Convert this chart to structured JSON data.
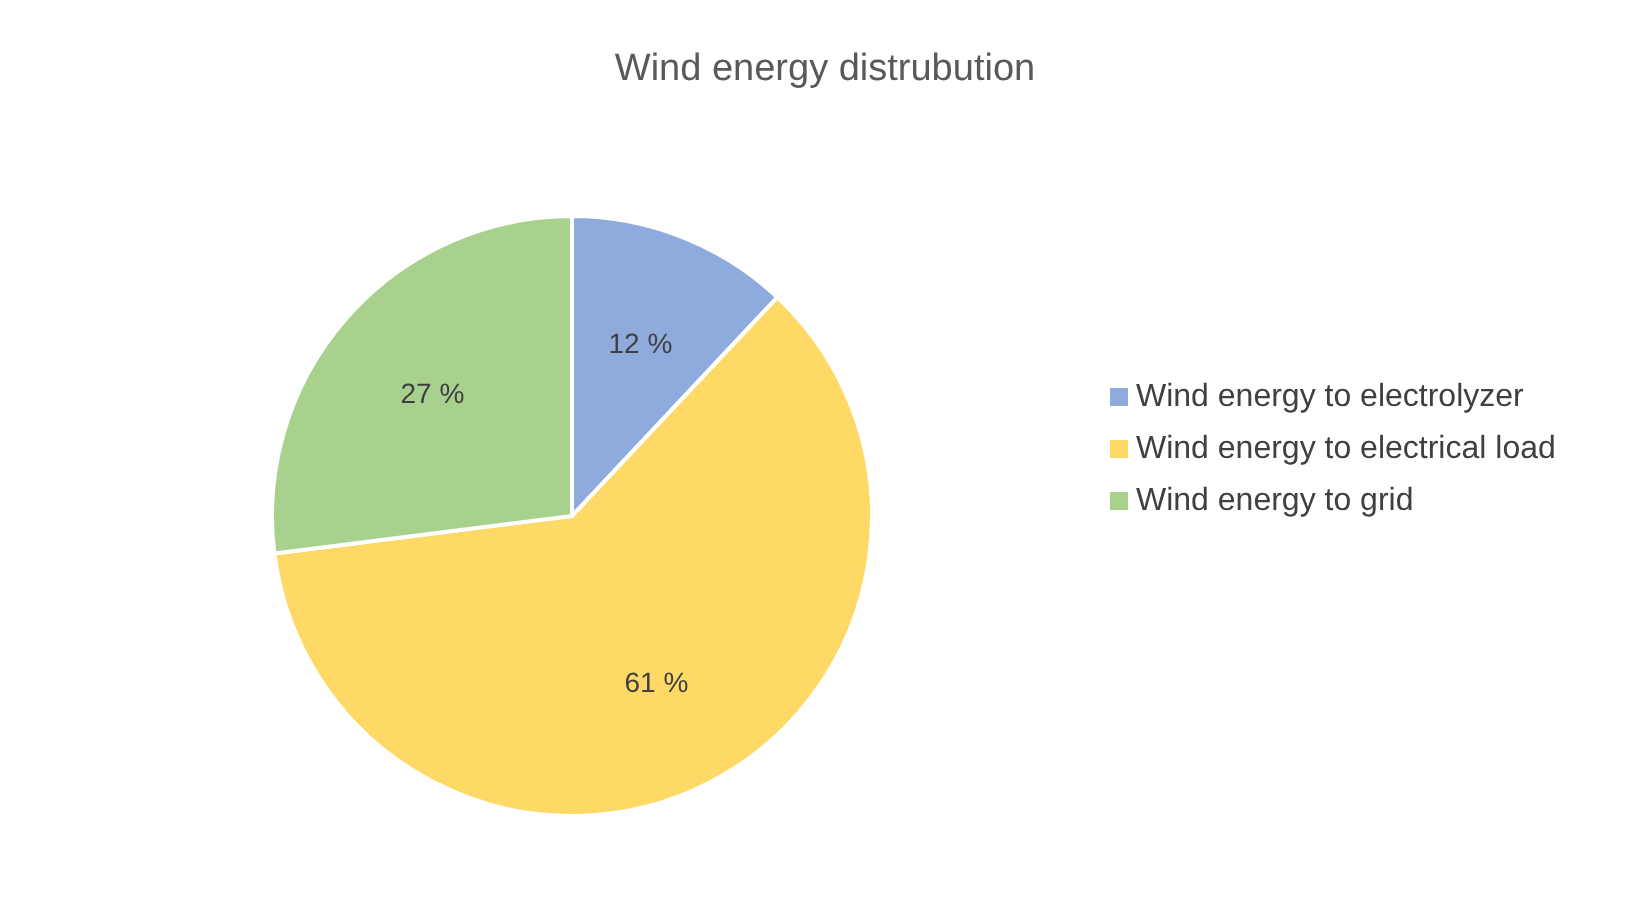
{
  "chart_data": {
    "type": "pie",
    "title": "Wind energy distrubution",
    "categories": [
      "Wind energy to electrolyzer",
      "Wind energy to electrical load",
      "Wind energy to grid"
    ],
    "values": [
      12,
      61,
      27
    ],
    "colors": [
      "#8faadc",
      "#ffd966",
      "#a9d18e"
    ],
    "value_labels": [
      "12 %",
      "61 %",
      "27 %"
    ],
    "legend": "right"
  }
}
